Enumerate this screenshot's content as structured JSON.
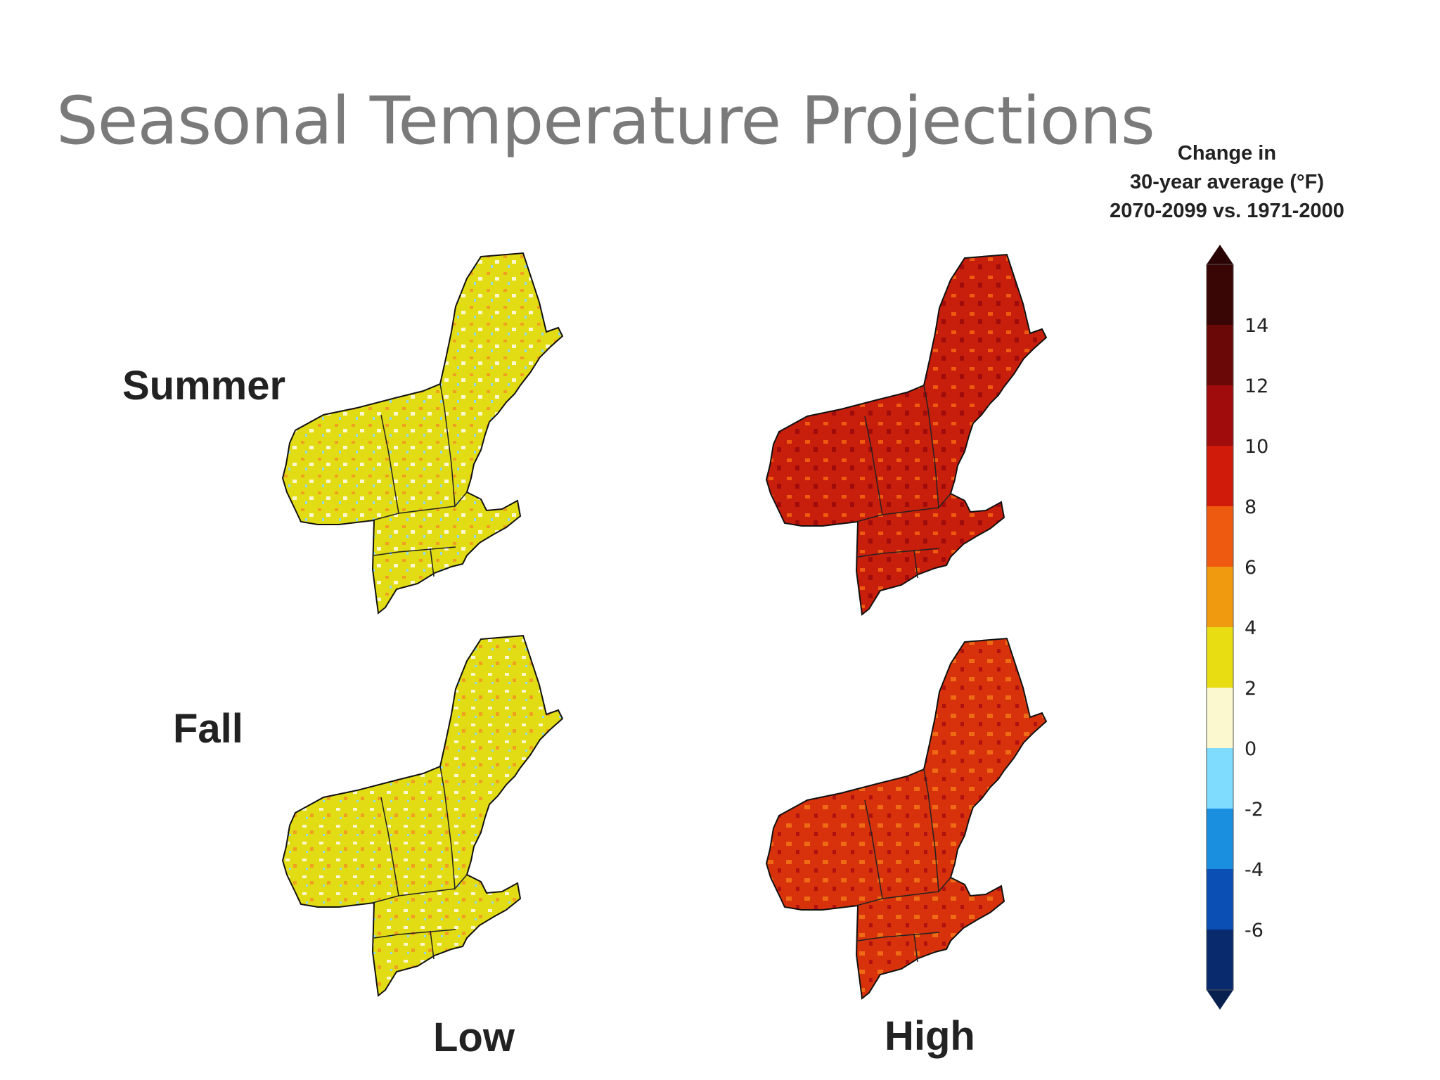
{
  "title": "Seasonal Temperature Projections",
  "row_labels": {
    "summer": "Summer",
    "fall": "Fall"
  },
  "column_labels": {
    "low": "Low",
    "high": "High"
  },
  "legend": {
    "title_lines": [
      "Change in",
      "30-year average (°F)",
      "2070-2099 vs. 1971-2000"
    ],
    "bins": [
      {
        "from": -8,
        "to": -6,
        "color": "#0a2a6e"
      },
      {
        "from": -6,
        "to": -4,
        "color": "#0b4fb5"
      },
      {
        "from": -4,
        "to": -2,
        "color": "#1a8fe0"
      },
      {
        "from": -2,
        "to": 0,
        "color": "#7fdcff"
      },
      {
        "from": 0,
        "to": 2,
        "color": "#fbf8d0"
      },
      {
        "from": 2,
        "to": 4,
        "color": "#e8dd12"
      },
      {
        "from": 4,
        "to": 6,
        "color": "#f09a10"
      },
      {
        "from": 6,
        "to": 8,
        "color": "#ee5a10"
      },
      {
        "from": 8,
        "to": 10,
        "color": "#d01a0a"
      },
      {
        "from": 10,
        "to": 12,
        "color": "#a00c0c"
      },
      {
        "from": 12,
        "to": 14,
        "color": "#6a0808"
      },
      {
        "from": 14,
        "to": 16,
        "color": "#3a0505"
      }
    ],
    "tick_labels": [
      "14",
      "12",
      "10",
      "8",
      "6",
      "4",
      "2",
      "0",
      "-2",
      "-4",
      "-6"
    ],
    "over_color": "#2a0404",
    "under_color": "#08204e"
  },
  "maps": [
    {
      "season": "Summer",
      "scenario": "Low",
      "fill": "#e2dc14",
      "speckle": [
        "#f0a020",
        "#fbf8d0",
        "#8fd8f0"
      ]
    },
    {
      "season": "Summer",
      "scenario": "High",
      "fill": "#c81e0c",
      "speckle": [
        "#ee5a10",
        "#a00c0c"
      ]
    },
    {
      "season": "Fall",
      "scenario": "Low",
      "fill": "#e2dc14",
      "speckle": [
        "#f0a020",
        "#fbf8d0",
        "#8fd8f0"
      ]
    },
    {
      "season": "Fall",
      "scenario": "High",
      "fill": "#d8320c",
      "speckle": [
        "#ee6a14",
        "#b01210"
      ]
    }
  ]
}
